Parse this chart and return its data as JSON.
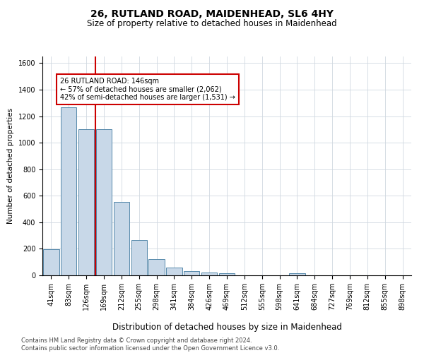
{
  "title": "26, RUTLAND ROAD, MAIDENHEAD, SL6 4HY",
  "subtitle": "Size of property relative to detached houses in Maidenhead",
  "xlabel": "Distribution of detached houses by size in Maidenhead",
  "ylabel": "Number of detached properties",
  "categories": [
    "41sqm",
    "83sqm",
    "126sqm",
    "169sqm",
    "212sqm",
    "255sqm",
    "298sqm",
    "341sqm",
    "384sqm",
    "426sqm",
    "469sqm",
    "512sqm",
    "555sqm",
    "598sqm",
    "641sqm",
    "684sqm",
    "727sqm",
    "769sqm",
    "812sqm",
    "855sqm",
    "898sqm"
  ],
  "values": [
    195,
    1265,
    1100,
    1100,
    555,
    265,
    120,
    60,
    30,
    20,
    15,
    0,
    0,
    0,
    15,
    0,
    0,
    0,
    0,
    0,
    0
  ],
  "bar_color": "#c8d8e8",
  "bar_edge_color": "#5588aa",
  "vline_color": "#cc0000",
  "vline_x_index": 2,
  "annotation_text": "26 RUTLAND ROAD: 146sqm\n← 57% of detached houses are smaller (2,062)\n42% of semi-detached houses are larger (1,531) →",
  "annotation_box_color": "#ffffff",
  "annotation_box_edge_color": "#cc0000",
  "ylim": [
    0,
    1650
  ],
  "yticks": [
    0,
    200,
    400,
    600,
    800,
    1000,
    1200,
    1400,
    1600
  ],
  "grid_color": "#d0d8e0",
  "background_color": "#ffffff",
  "footnote": "Contains HM Land Registry data © Crown copyright and database right 2024.\nContains public sector information licensed under the Open Government Licence v3.0.",
  "title_fontsize": 10,
  "subtitle_fontsize": 8.5,
  "xlabel_fontsize": 8.5,
  "ylabel_fontsize": 7.5,
  "tick_fontsize": 7,
  "annotation_fontsize": 7,
  "footnote_fontsize": 6
}
